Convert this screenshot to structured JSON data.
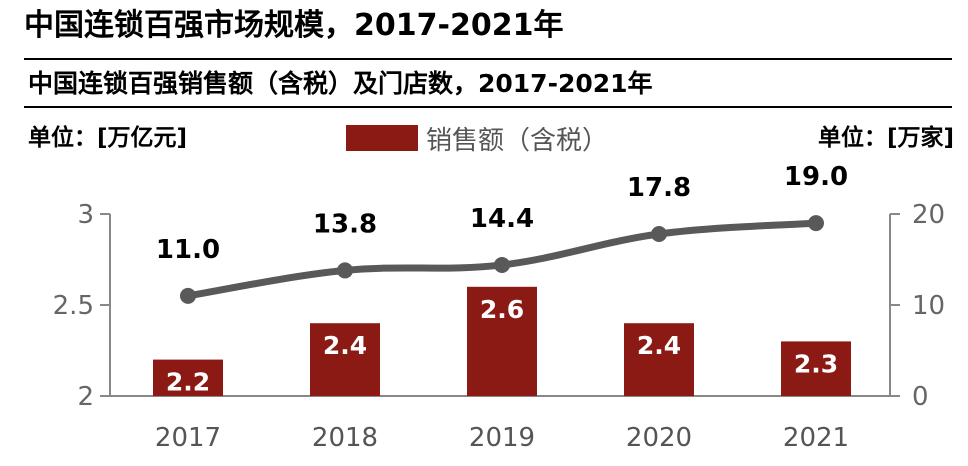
{
  "header": {
    "title": "中国连锁百强市场规模，2017-2021年",
    "subtitle": "中国连锁百强销售额（含税）及门店数，2017-2021年",
    "unit_left": "单位：[万亿元]",
    "unit_right": "单位：[万家]",
    "legend_label": "销售额（含税）"
  },
  "colors": {
    "bar": "#8b1a14",
    "line": "#595959",
    "axis": "#888888"
  },
  "chart_data": {
    "type": "bar+line",
    "title": "中国连锁百强销售额（含税）及门店数，2017-2021年",
    "categories": [
      "2017",
      "2018",
      "2019",
      "2020",
      "2021"
    ],
    "series": [
      {
        "name": "销售额（含税）",
        "type": "bar",
        "axis": "left",
        "unit": "万亿元",
        "values": [
          2.2,
          2.4,
          2.6,
          2.4,
          2.3
        ],
        "labels": [
          "2.2",
          "2.4",
          "2.6",
          "2.4",
          "2.3"
        ]
      },
      {
        "name": "门店数",
        "type": "line",
        "axis": "right",
        "unit": "万家",
        "values": [
          11.0,
          13.8,
          14.4,
          17.8,
          19.0
        ],
        "labels": [
          "11.0",
          "13.8",
          "14.4",
          "17.8",
          "19.0"
        ]
      }
    ],
    "y_left": {
      "range": [
        2,
        3
      ],
      "ticks": [
        "2",
        "2.5",
        "3"
      ],
      "tick_values": [
        2,
        2.5,
        3
      ]
    },
    "y_right": {
      "range": [
        0,
        20
      ],
      "ticks": [
        "0",
        "10",
        "20"
      ],
      "tick_values": [
        0,
        10,
        20
      ]
    },
    "legend": "top-center",
    "grid": false
  }
}
